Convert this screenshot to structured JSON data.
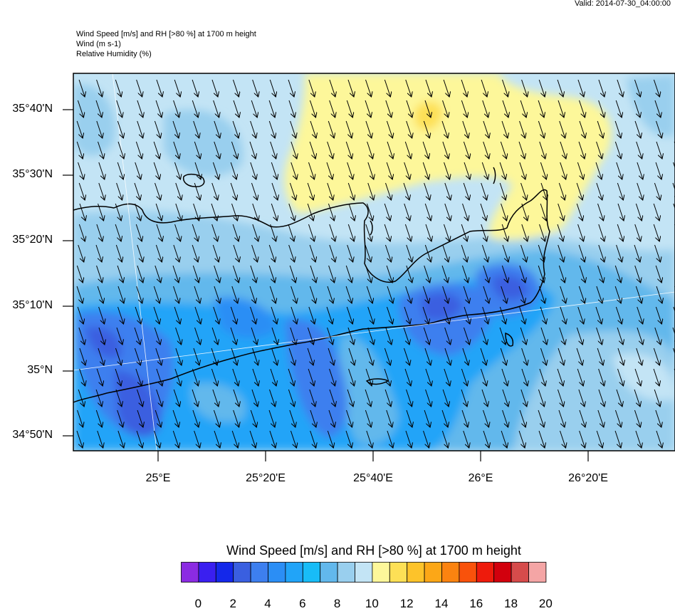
{
  "header": {
    "valid": "Valid: 2014-07-30_04:00:00",
    "line1": "Wind Speed [m/s] and RH [>80 %] at 1700 m height",
    "line2": "Wind   (m s-1)",
    "line3": "Relative Humidity   (%)"
  },
  "axes": {
    "lat_labels": [
      "35°40'N",
      "35°30'N",
      "35°20'N",
      "35°10'N",
      "35°N",
      "34°50'N"
    ],
    "lon_labels": [
      "25°E",
      "25°20'E",
      "25°40'E",
      "26°E",
      "26°20'E"
    ]
  },
  "legend": {
    "title": "Wind Speed [m/s] and RH [>80 %] at 1700 m height",
    "tick_labels": [
      "0",
      "2",
      "4",
      "6",
      "8",
      "10",
      "12",
      "14",
      "16",
      "18",
      "20"
    ],
    "colors": [
      "#8b2be2",
      "#3a1ff0",
      "#1428ea",
      "#3a5fe0",
      "#3d7fef",
      "#2b8ef5",
      "#21a4f8",
      "#18bcf7",
      "#62b8ec",
      "#99cfee",
      "#c3e4f5",
      "#fdf79a",
      "#fde056",
      "#fdc32a",
      "#fca717",
      "#fb8310",
      "#f9520b",
      "#ee1b0c",
      "#d2000d",
      "#d64b4b",
      "#f4a5a5"
    ]
  },
  "colors": {
    "background": "#ffffff",
    "coastline": "#000000",
    "wind_arrow": "#000000"
  },
  "wind": {
    "direction": "NNW",
    "note_units": "m s-1"
  }
}
